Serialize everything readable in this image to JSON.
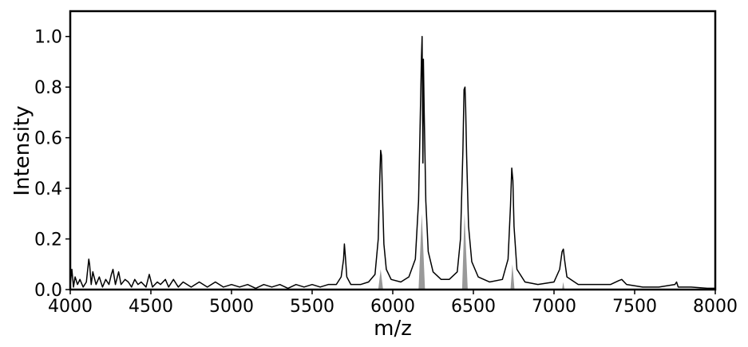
{
  "chart_data": {
    "type": "line",
    "xlabel": "m/z",
    "ylabel": "Intensity",
    "xlim": [
      4000,
      8000
    ],
    "ylim": [
      0,
      1.1
    ],
    "xticks": [
      4000,
      4500,
      5000,
      5500,
      6000,
      6500,
      7000,
      7500,
      8000
    ],
    "yticks": [
      {
        "value": 0,
        "label": "0.0"
      },
      0.2,
      0.4,
      0.6,
      0.8,
      {
        "value": 1,
        "label": "1.0"
      }
    ],
    "series": [
      {
        "color": "#999999",
        "fill": true,
        "x": [
          5910,
          5925,
          5940,
          null,
          6160,
          6180,
          6200,
          null,
          6430,
          6445,
          6465,
          null,
          6730,
          6742,
          6755,
          null,
          7050,
          7057,
          7065
        ],
        "values": [
          0,
          0.08,
          0,
          null,
          0,
          0.3,
          0,
          null,
          0,
          0.3,
          0,
          null,
          0,
          0.1,
          0,
          null,
          0,
          0.03,
          0
        ]
      },
      {
        "color": "#000000",
        "fill": false,
        "x": [
          4000,
          4010,
          4020,
          4030,
          4045,
          4060,
          4080,
          4100,
          4115,
          4120,
          4130,
          4140,
          4160,
          4180,
          4200,
          4220,
          4240,
          4255,
          4265,
          4280,
          4300,
          4315,
          4340,
          4360,
          4380,
          4400,
          4420,
          4440,
          4470,
          4490,
          4510,
          4540,
          4560,
          4590,
          4610,
          4640,
          4670,
          4700,
          4750,
          4800,
          4850,
          4900,
          4950,
          5000,
          5050,
          5100,
          5150,
          5200,
          5250,
          5300,
          5350,
          5400,
          5450,
          5500,
          5550,
          5600,
          5650,
          5680,
          5695,
          5700,
          5705,
          5715,
          5740,
          5800,
          5850,
          5890,
          5910,
          5920,
          5925,
          5930,
          5935,
          5945,
          5960,
          5990,
          6050,
          6100,
          6140,
          6160,
          6170,
          6178,
          6182,
          6187,
          6190,
          6195,
          6205,
          6220,
          6250,
          6300,
          6350,
          6400,
          6420,
          6435,
          6442,
          6448,
          6452,
          6458,
          6470,
          6490,
          6530,
          6600,
          6680,
          6715,
          6730,
          6738,
          6745,
          6752,
          6770,
          6820,
          6900,
          7000,
          7035,
          7050,
          7058,
          7065,
          7080,
          7150,
          7250,
          7350,
          7400,
          7420,
          7450,
          7550,
          7650,
          7750,
          7760,
          7770,
          7850,
          7950,
          8000
        ],
        "values": [
          0.02,
          0.08,
          0.01,
          0.05,
          0.02,
          0.04,
          0.01,
          0.03,
          0.12,
          0.1,
          0.02,
          0.07,
          0.02,
          0.05,
          0.01,
          0.04,
          0.02,
          0.06,
          0.08,
          0.02,
          0.07,
          0.02,
          0.04,
          0.03,
          0.01,
          0.04,
          0.02,
          0.03,
          0.01,
          0.06,
          0.01,
          0.03,
          0.02,
          0.04,
          0.01,
          0.04,
          0.01,
          0.03,
          0.01,
          0.03,
          0.01,
          0.03,
          0.01,
          0.02,
          0.01,
          0.02,
          0.005,
          0.02,
          0.01,
          0.02,
          0.005,
          0.02,
          0.01,
          0.02,
          0.01,
          0.02,
          0.02,
          0.05,
          0.12,
          0.18,
          0.14,
          0.05,
          0.02,
          0.02,
          0.03,
          0.06,
          0.2,
          0.45,
          0.55,
          0.53,
          0.4,
          0.18,
          0.08,
          0.04,
          0.03,
          0.05,
          0.12,
          0.35,
          0.66,
          0.92,
          1.0,
          0.5,
          0.91,
          0.7,
          0.35,
          0.15,
          0.07,
          0.04,
          0.04,
          0.07,
          0.2,
          0.55,
          0.79,
          0.8,
          0.72,
          0.53,
          0.25,
          0.11,
          0.05,
          0.03,
          0.04,
          0.12,
          0.33,
          0.48,
          0.43,
          0.25,
          0.08,
          0.03,
          0.02,
          0.03,
          0.08,
          0.15,
          0.16,
          0.12,
          0.05,
          0.02,
          0.02,
          0.02,
          0.035,
          0.04,
          0.02,
          0.01,
          0.01,
          0.02,
          0.03,
          0.01,
          0.01,
          0.005,
          0.005
        ]
      }
    ]
  }
}
